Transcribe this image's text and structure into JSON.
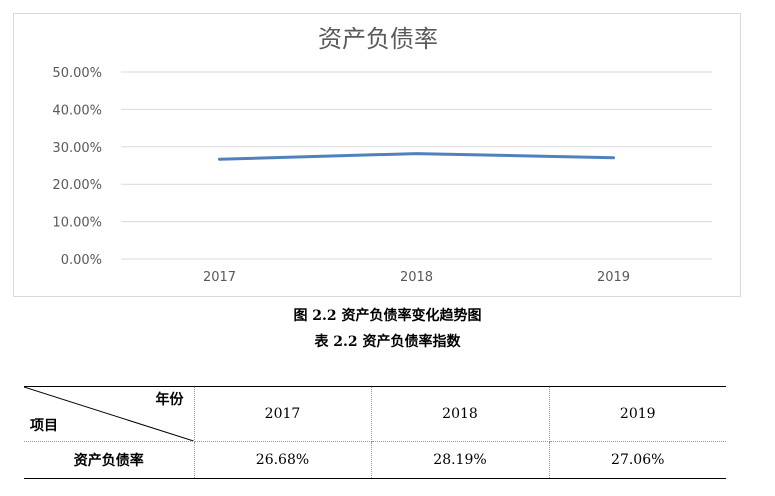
{
  "chart_data": {
    "type": "line",
    "title": "资产负债率",
    "categories": [
      "2017",
      "2018",
      "2019"
    ],
    "series": [
      {
        "values": [
          26.68,
          28.19,
          27.06
        ],
        "color": "#4f81bd"
      }
    ],
    "ylim": [
      0,
      50
    ],
    "yticks": [
      "0.00%",
      "10.00%",
      "20.00%",
      "30.00%",
      "40.00%",
      "50.00%"
    ],
    "xlabel": "",
    "ylabel": "",
    "grid": true,
    "legend": "none"
  },
  "figure_caption": "图 2.2 资产负债率变化趋势图",
  "table_caption": "表 2.2 资产负债率指数",
  "table": {
    "corner_top": "年份",
    "corner_bottom": "项目",
    "years": [
      "2017",
      "2018",
      "2019"
    ],
    "row_label": "资产负债率",
    "values": [
      "26.68%",
      "28.19%",
      "27.06%"
    ]
  }
}
